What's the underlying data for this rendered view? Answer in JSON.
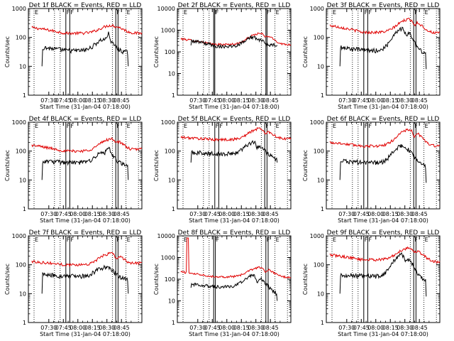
{
  "chart_data": [
    {
      "type": "line",
      "title": "Det 1f BLACK = Events, RED = LLD",
      "ylabel": "Counts/sec",
      "xlabel": "Start Time (31-Jan-04 07:18:00)",
      "x_ticks": [
        "07:30",
        "07:45",
        "08:00",
        "08:15",
        "08:30",
        "08:45"
      ],
      "y_ticks": [
        "1",
        "10",
        "100",
        "1000"
      ],
      "ylim": [
        1,
        1000
      ],
      "y_scale": "log",
      "grid": false,
      "legend": "none",
      "red": {
        "base_start": 220,
        "base_mid": 140,
        "peak": 260,
        "peak2": 230,
        "base_end": 140
      },
      "black": {
        "base_start": 45,
        "base_mid": 35,
        "peak": 85,
        "peak2": 150,
        "base_end": 30,
        "start_min": 10,
        "end_min": 10
      },
      "flags": {
        "F": [
          0.33,
          0.365,
          0.77,
          0.79
        ],
        "E": [
          0.05,
          0.86
        ]
      },
      "colors": {
        "red": "#e00000",
        "black": "#000000"
      }
    },
    {
      "type": "line",
      "title": "Det 2f BLACK = Events, RED = LLD",
      "ylabel": "Counts/sec",
      "xlabel": "Start Time (31-Jan-04 07:18:00)",
      "x_ticks": [
        "07:30",
        "07:45",
        "08:00",
        "08:15",
        "08:30",
        "08:45"
      ],
      "y_ticks": [
        "1",
        "10",
        "100",
        "1000",
        "10000"
      ],
      "ylim": [
        1,
        10000
      ],
      "y_scale": "log",
      "grid": false,
      "legend": "none",
      "red": {
        "base_start": 400,
        "base_mid": 220,
        "peak": 700,
        "peak2": 450,
        "base_end": 220
      },
      "black": {
        "base_start": 330,
        "base_mid": 180,
        "peak": 480,
        "peak2": 300,
        "base_end": 210,
        "start_min": 200,
        "end_min": 200
      },
      "flags": {
        "F": [
          0.32,
          0.33,
          0.78,
          0.79
        ],
        "E": [
          0.05,
          0.86
        ]
      },
      "colors": {
        "red": "#e00000",
        "black": "#000000"
      }
    },
    {
      "type": "line",
      "title": "Det 3f BLACK = Events, RED = LLD",
      "ylabel": "Counts/sec",
      "xlabel": "Start Time (31-Jan-04 07:18:00)",
      "x_ticks": [
        "07:30",
        "07:45",
        "08:00",
        "08:15",
        "08:30",
        "08:45"
      ],
      "y_ticks": [
        "1",
        "10",
        "100",
        "1000"
      ],
      "ylim": [
        1,
        1000
      ],
      "y_scale": "log",
      "grid": false,
      "legend": "none",
      "red": {
        "base_start": 260,
        "base_mid": 150,
        "peak": 420,
        "peak2": 250,
        "base_end": 140
      },
      "black": {
        "base_start": 45,
        "base_mid": 35,
        "peak": 200,
        "peak2": 100,
        "base_end": 30,
        "start_min": 10,
        "end_min": 8
      },
      "flags": {
        "F": [
          0.33,
          0.365,
          0.77,
          0.79
        ],
        "E": [
          0.05,
          0.86
        ]
      },
      "colors": {
        "red": "#e00000",
        "black": "#000000"
      }
    },
    {
      "type": "line",
      "title": "Det 4f BLACK = Events, RED = LLD",
      "ylabel": "Counts/sec",
      "xlabel": "Start Time (31-Jan-04 07:18:00)",
      "x_ticks": [
        "07:30",
        "07:45",
        "08:00",
        "08:15",
        "08:30",
        "08:45"
      ],
      "y_ticks": [
        "1",
        "10",
        "100",
        "1000"
      ],
      "ylim": [
        1,
        1000
      ],
      "y_scale": "log",
      "grid": false,
      "legend": "none",
      "red": {
        "base_start": 160,
        "base_mid": 100,
        "peak": 260,
        "peak2": 200,
        "base_end": 120
      },
      "black": {
        "base_start": 45,
        "base_mid": 40,
        "peak": 90,
        "peak2": 150,
        "base_end": 30,
        "start_min": 10,
        "end_min": 10
      },
      "flags": {
        "F": [
          0.33,
          0.365,
          0.77,
          0.79
        ],
        "E": [
          0.05,
          0.86
        ]
      },
      "colors": {
        "red": "#e00000",
        "black": "#000000"
      }
    },
    {
      "type": "line",
      "title": "Det 5f BLACK = Events, RED = LLD",
      "ylabel": "Counts/sec",
      "xlabel": "Start Time (31-Jan-04 07:18:00)",
      "x_ticks": [
        "07:30",
        "07:45",
        "08:00",
        "08:15",
        "08:30",
        "08:45"
      ],
      "y_ticks": [
        "1",
        "10",
        "100",
        "1000"
      ],
      "ylim": [
        1,
        1000
      ],
      "y_scale": "log",
      "grid": false,
      "legend": "none",
      "red": {
        "base_start": 300,
        "base_mid": 250,
        "peak": 600,
        "peak2": 350,
        "base_end": 270
      },
      "black": {
        "base_start": 90,
        "base_mid": 80,
        "peak": 200,
        "peak2": 120,
        "base_end": 50,
        "start_min": 40,
        "end_min": 40
      },
      "flags": {
        "F": [
          0.33,
          0.365,
          0.77,
          0.79
        ],
        "E": [
          0.05,
          0.86
        ]
      },
      "colors": {
        "red": "#e00000",
        "black": "#000000"
      }
    },
    {
      "type": "line",
      "title": "Det 6f BLACK = Events, RED = LLD",
      "ylabel": "Counts/sec",
      "xlabel": "Start Time (31-Jan-04 07:18:00)",
      "x_ticks": [
        "07:30",
        "07:45",
        "08:00",
        "08:15",
        "08:30",
        "08:45"
      ],
      "y_ticks": [
        "1",
        "10",
        "100",
        "1000"
      ],
      "ylim": [
        1,
        1000
      ],
      "y_scale": "log",
      "grid": false,
      "legend": "none",
      "red": {
        "base_start": 200,
        "base_mid": 150,
        "peak": 550,
        "peak2": 250,
        "base_end": 150
      },
      "black": {
        "base_start": 45,
        "base_mid": 40,
        "peak": 150,
        "peak2": 100,
        "base_end": 30,
        "start_min": 10,
        "end_min": 8
      },
      "flags": {
        "F": [
          0.33,
          0.365,
          0.77,
          0.79
        ],
        "E": [
          0.05,
          0.86
        ]
      },
      "colors": {
        "red": "#e00000",
        "black": "#000000"
      }
    },
    {
      "type": "line",
      "title": "Det 7f BLACK = Events, RED = LLD",
      "ylabel": "Counts/sec",
      "xlabel": "Start Time (31-Jan-04 07:18:00)",
      "x_ticks": [
        "07:30",
        "07:45",
        "08:00",
        "08:15",
        "08:30",
        "08:45"
      ],
      "y_ticks": [
        "1",
        "10",
        "100",
        "1000"
      ],
      "ylim": [
        1,
        1000
      ],
      "y_scale": "log",
      "grid": false,
      "legend": "none",
      "red": {
        "base_start": 130,
        "base_mid": 100,
        "peak": 250,
        "peak2": 150,
        "base_end": 120
      },
      "black": {
        "base_start": 45,
        "base_mid": 40,
        "peak": 80,
        "peak2": 90,
        "base_end": 30,
        "start_min": 10,
        "end_min": 10
      },
      "flags": {
        "F": [
          0.33,
          0.365,
          0.77,
          0.79
        ],
        "E": [
          0.05,
          0.86
        ]
      },
      "colors": {
        "red": "#e00000",
        "black": "#000000"
      }
    },
    {
      "type": "line",
      "title": "Det 8f BLACK = Events, RED = LLD",
      "ylabel": "Counts/sec",
      "xlabel": "Start Time (31-Jan-04 07:18:00)",
      "x_ticks": [
        "07:30",
        "07:45",
        "08:00",
        "08:15",
        "08:30",
        "08:45"
      ],
      "y_ticks": [
        "1",
        "10",
        "100",
        "1000",
        "10000"
      ],
      "ylim": [
        1,
        10000
      ],
      "y_scale": "log",
      "grid": false,
      "legend": "none",
      "red": {
        "base_start": 220,
        "base_mid": 130,
        "peak": 350,
        "peak2": 180,
        "base_end": 120,
        "spike": 8000
      },
      "black": {
        "base_start": 60,
        "base_mid": 45,
        "peak": 150,
        "peak2": 60,
        "base_end": 20,
        "start_min": 40,
        "end_min": 10
      },
      "flags": {
        "F": [
          0.32,
          0.335,
          0.78,
          0.8
        ],
        "E": [
          0.05,
          0.86
        ]
      },
      "colors": {
        "red": "#e00000",
        "black": "#000000"
      }
    },
    {
      "type": "line",
      "title": "Det 9f BLACK = Events, RED = LLD",
      "ylabel": "Counts/sec",
      "xlabel": "Start Time (31-Jan-04 07:18:00)",
      "x_ticks": [
        "07:30",
        "07:45",
        "08:00",
        "08:15",
        "08:30",
        "08:45"
      ],
      "y_ticks": [
        "1",
        "10",
        "100",
        "1000"
      ],
      "ylim": [
        1,
        1000
      ],
      "y_scale": "log",
      "grid": false,
      "legend": "none",
      "red": {
        "base_start": 220,
        "base_mid": 150,
        "peak": 380,
        "peak2": 250,
        "base_end": 120
      },
      "black": {
        "base_start": 45,
        "base_mid": 40,
        "peak": 220,
        "peak2": 100,
        "base_end": 30,
        "start_min": 10,
        "end_min": 8
      },
      "flags": {
        "F": [
          0.33,
          0.365,
          0.77,
          0.79
        ],
        "E": [
          0.05,
          0.86
        ]
      },
      "colors": {
        "red": "#e00000",
        "black": "#000000"
      }
    }
  ]
}
